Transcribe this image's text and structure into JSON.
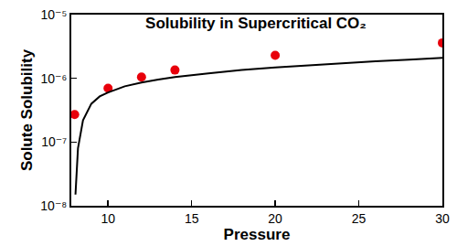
{
  "chart_data": {
    "type": "scatter",
    "title": "Solubility in Supercritical CO₂",
    "x_label": "Pressure",
    "y_label": "Solute Solubility",
    "log": "y",
    "grid": false,
    "xlim": [
      7.8,
      30
    ],
    "xticks": [
      10,
      15,
      20,
      25,
      30
    ],
    "ylim": [
      1e-08,
      1e-05
    ],
    "yticks": [
      {
        "value": 1e-08,
        "label": "10⁻⁸"
      },
      {
        "value": 1e-07,
        "label": "10⁻⁷"
      },
      {
        "value": 1e-06,
        "label": "10⁻⁶"
      },
      {
        "value": 1e-05,
        "label": "10⁻⁵"
      }
    ],
    "series": [
      {
        "type": "scatter",
        "color": "#e8000b",
        "marker": "circle",
        "x": [
          8,
          10,
          12,
          14,
          20,
          30
        ],
        "values": [
          2.7e-07,
          7e-07,
          1.05e-06,
          1.35e-06,
          2.3e-06,
          3.6e-06
        ]
      },
      {
        "type": "line",
        "color": "#000000",
        "line_style": "solid",
        "x": [
          8.05,
          8.2,
          8.5,
          9,
          9.5,
          10,
          11,
          12,
          13,
          14,
          16,
          18,
          20,
          22,
          24,
          26,
          28,
          30
        ],
        "values": [
          1.5e-08,
          8e-08,
          2.2e-07,
          4e-07,
          5.2e-07,
          6e-07,
          7.5e-07,
          8.6e-07,
          9.6e-07,
          1.05e-06,
          1.2e-06,
          1.35e-06,
          1.48e-06,
          1.6e-06,
          1.72e-06,
          1.85e-06,
          1.97e-06,
          2.1e-06
        ]
      }
    ]
  }
}
